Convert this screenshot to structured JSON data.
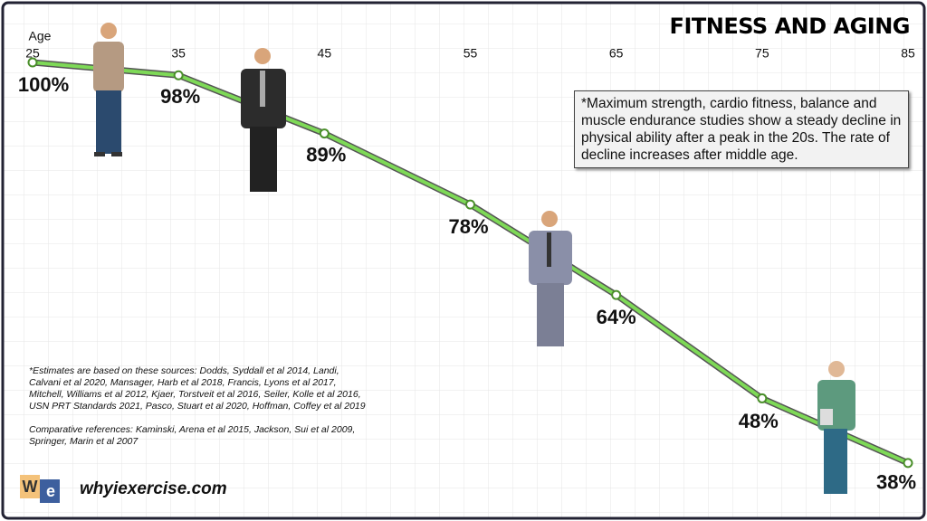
{
  "chart_data": {
    "type": "line",
    "title": "FITNESS AND AGING",
    "x_label": "Age",
    "x": [
      25,
      35,
      45,
      55,
      65,
      75,
      85
    ],
    "values": [
      100,
      98,
      89,
      78,
      64,
      48,
      38
    ],
    "value_labels": [
      "100%",
      "98%",
      "89%",
      "78%",
      "64%",
      "48%",
      "38%"
    ],
    "color": "#7ed957",
    "xlim": [
      25,
      85
    ],
    "xticks": [
      25,
      35,
      45,
      55,
      65,
      75,
      85
    ],
    "ylim": [
      30,
      100
    ],
    "annotation": "*Maximum strength, cardio fitness, balance and muscle endurance studies show a steady decline in physical ability after a peak in the 20s. The rate of decline increases after middle age.",
    "footnotes": [
      "*Estimates are based on these sources:  Dodds, Syddall et al 2014, Landi, Calvani et al 2020, Mansager, Harb et al 2018, Francis, Lyons et al 2017, Mitchell, Williams et al 2012,  Kjaer, Torstveit et al 2016, Seiler, Kolle et al 2016, USN PRT Standards 2021, Pasco, Stuart et al 2020, Hoffman, Coffey et al 2019",
      "Comparative references:  Kaminski, Arena et al 2015, Jackson, Sui et al 2009, Springer, Marin et al 2007"
    ],
    "logo": [
      "W",
      "e"
    ],
    "website": "whyiexercise.com"
  }
}
